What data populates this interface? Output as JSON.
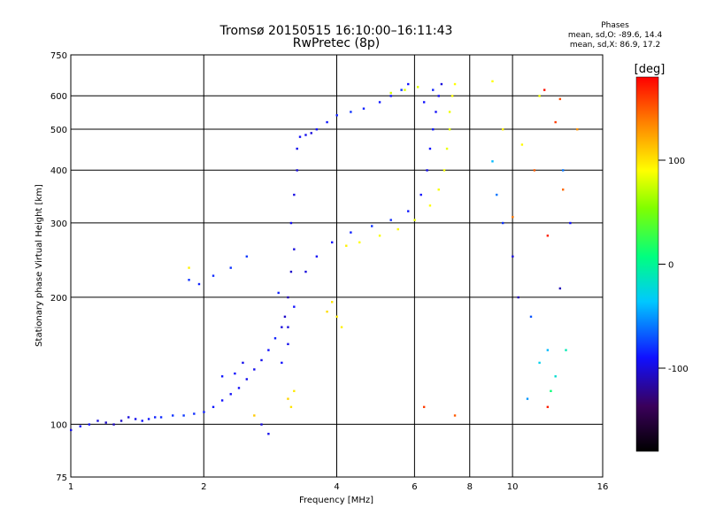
{
  "header": {
    "title_line1": "Tromsø 20150515 16:10:00–16:11:43",
    "title_line2": "RwPretec (8p)",
    "stats_title": "Phases",
    "stats_o": "mean, sd,O: -89.6, 14.4",
    "stats_x": "mean, sd,X:  86.9, 17.2"
  },
  "colorbar": {
    "unit": "[deg]",
    "ticks": [
      {
        "label": "100",
        "value": 100
      },
      {
        "label": "0",
        "value": 0
      },
      {
        "label": "-100",
        "value": -100
      }
    ],
    "range": [
      -180,
      180
    ]
  },
  "chart_data": {
    "type": "scatter",
    "title": "Tromsø 20150515 16:10:00–16:11:43",
    "subtitle": "RwPretec (8p)",
    "xlabel": "Frequency [MHz]",
    "ylabel": "Stationary phase Virtual Height [km]",
    "xscale": "log",
    "yscale": "log",
    "xlim": [
      1,
      16
    ],
    "ylim": [
      75,
      750
    ],
    "xticks": [
      1,
      2,
      4,
      6,
      8,
      10,
      16
    ],
    "xtick_labels": [
      "1",
      "2",
      "4",
      "6",
      "8",
      "10",
      "16"
    ],
    "yticks": [
      75,
      100,
      200,
      300,
      400,
      500,
      600,
      750
    ],
    "ytick_labels": [
      "75",
      "100",
      "200",
      "300",
      "400",
      "500",
      "600",
      "750"
    ],
    "grid": true,
    "color_encoding": "phase [deg]",
    "series": [
      {
        "points": [
          [
            1.0,
            97,
            -95
          ],
          [
            1.05,
            99,
            -92
          ],
          [
            1.1,
            100,
            -90
          ],
          [
            1.15,
            102,
            -100
          ],
          [
            1.2,
            101,
            -105
          ],
          [
            1.25,
            100,
            -108
          ],
          [
            1.3,
            102,
            -105
          ],
          [
            1.35,
            104,
            -100
          ],
          [
            1.4,
            103,
            -95
          ],
          [
            1.45,
            102,
            -90
          ],
          [
            1.5,
            103,
            -88
          ],
          [
            1.55,
            104,
            -85
          ],
          [
            1.6,
            104,
            -82
          ],
          [
            1.7,
            105,
            -80
          ],
          [
            1.8,
            105,
            -78
          ],
          [
            1.9,
            106,
            -82
          ],
          [
            2.0,
            107,
            -85
          ],
          [
            2.1,
            110,
            -88
          ],
          [
            2.2,
            114,
            -90
          ],
          [
            2.3,
            118,
            -92
          ],
          [
            2.4,
            122,
            -92
          ],
          [
            2.5,
            128,
            -95
          ],
          [
            2.6,
            135,
            -95
          ],
          [
            2.7,
            142,
            -95
          ],
          [
            2.8,
            150,
            -90
          ],
          [
            2.9,
            160,
            -85
          ],
          [
            3.0,
            170,
            -100
          ],
          [
            3.05,
            180,
            -105
          ],
          [
            3.1,
            200,
            -110
          ],
          [
            3.15,
            230,
            -105
          ],
          [
            3.2,
            260,
            -100
          ],
          [
            3.15,
            300,
            -95
          ],
          [
            3.2,
            350,
            -98
          ],
          [
            3.25,
            400,
            -100
          ],
          [
            3.25,
            450,
            -95
          ],
          [
            3.3,
            480,
            -92
          ],
          [
            3.4,
            485,
            -95
          ],
          [
            3.5,
            490,
            -100
          ],
          [
            3.6,
            500,
            -90
          ],
          [
            3.8,
            520,
            -88
          ],
          [
            4.0,
            540,
            -85
          ],
          [
            4.3,
            550,
            -80
          ],
          [
            4.6,
            560,
            -85
          ],
          [
            5.0,
            580,
            -88
          ],
          [
            5.3,
            600,
            -90
          ],
          [
            5.6,
            620,
            -80
          ],
          [
            5.8,
            640,
            -90
          ],
          [
            1.85,
            220,
            -80
          ],
          [
            1.95,
            215,
            -85
          ],
          [
            2.1,
            225,
            -82
          ],
          [
            2.3,
            235,
            -80
          ],
          [
            2.5,
            250,
            -78
          ],
          [
            3.4,
            230,
            -100
          ],
          [
            3.6,
            250,
            -92
          ],
          [
            3.9,
            270,
            -90
          ],
          [
            4.3,
            285,
            -85
          ],
          [
            4.8,
            295,
            -80
          ],
          [
            5.3,
            305,
            -82
          ],
          [
            5.8,
            320,
            -88
          ],
          [
            6.2,
            350,
            -90
          ],
          [
            6.4,
            400,
            -95
          ],
          [
            6.5,
            450,
            -90
          ],
          [
            6.6,
            500,
            -88
          ],
          [
            6.7,
            550,
            -92
          ],
          [
            6.8,
            600,
            -95
          ],
          [
            6.9,
            640,
            -100
          ],
          [
            6.6,
            620,
            -85
          ],
          [
            6.3,
            580,
            -90
          ],
          [
            3.0,
            140,
            -90
          ],
          [
            3.1,
            155,
            -95
          ],
          [
            3.1,
            170,
            -100
          ],
          [
            3.2,
            190,
            -90
          ],
          [
            2.95,
            205,
            -85
          ],
          [
            2.35,
            132,
            -90
          ],
          [
            2.45,
            140,
            -95
          ],
          [
            2.2,
            130,
            -88
          ],
          [
            2.7,
            100,
            -100
          ],
          [
            2.8,
            95,
            -95
          ]
        ]
      },
      {
        "points": [
          [
            4.2,
            265,
            95
          ],
          [
            4.5,
            270,
            90
          ],
          [
            5.0,
            280,
            88
          ],
          [
            5.5,
            290,
            92
          ],
          [
            6.0,
            305,
            85
          ],
          [
            6.5,
            330,
            90
          ],
          [
            6.8,
            360,
            88
          ],
          [
            7.0,
            400,
            86
          ],
          [
            7.1,
            450,
            84
          ],
          [
            7.2,
            500,
            82
          ],
          [
            7.2,
            550,
            85
          ],
          [
            7.3,
            600,
            88
          ],
          [
            7.4,
            640,
            90
          ],
          [
            5.7,
            620,
            80
          ],
          [
            6.1,
            630,
            82
          ],
          [
            5.3,
            610,
            78
          ],
          [
            3.9,
            195,
            100
          ],
          [
            4.0,
            180,
            98
          ],
          [
            4.1,
            170,
            95
          ],
          [
            3.8,
            185,
            102
          ],
          [
            3.1,
            115,
            105
          ],
          [
            3.15,
            110,
            100
          ],
          [
            3.2,
            120,
            98
          ],
          [
            1.85,
            235,
            95
          ],
          [
            2.6,
            105,
            110
          ],
          [
            9.0,
            650,
            90
          ],
          [
            9.5,
            500,
            95
          ],
          [
            10.5,
            460,
            92
          ],
          [
            11.5,
            600,
            85
          ]
        ]
      },
      {
        "points": [
          [
            9.0,
            420,
            -40
          ],
          [
            9.2,
            350,
            -60
          ],
          [
            9.5,
            300,
            -80
          ],
          [
            10.0,
            250,
            -100
          ],
          [
            10.3,
            200,
            -110
          ],
          [
            11.0,
            180,
            -70
          ],
          [
            12.0,
            150,
            -40
          ],
          [
            12.5,
            130,
            -20
          ],
          [
            13.0,
            400,
            -60
          ],
          [
            13.5,
            300,
            -90
          ],
          [
            12.8,
            210,
            -110
          ],
          [
            11.5,
            140,
            -30
          ],
          [
            10.8,
            115,
            -50
          ],
          [
            13.2,
            150,
            -10
          ],
          [
            12.2,
            120,
            10
          ]
        ]
      },
      {
        "points": [
          [
            10.0,
            310,
            140
          ],
          [
            11.2,
            400,
            150
          ],
          [
            12.0,
            280,
            170
          ],
          [
            12.5,
            520,
            160
          ],
          [
            13.0,
            360,
            145
          ],
          [
            14.0,
            500,
            130
          ],
          [
            6.3,
            110,
            160
          ],
          [
            7.4,
            105,
            150
          ],
          [
            12.0,
            110,
            170
          ],
          [
            12.8,
            590,
            155
          ],
          [
            11.8,
            620,
            175
          ]
        ]
      }
    ]
  }
}
